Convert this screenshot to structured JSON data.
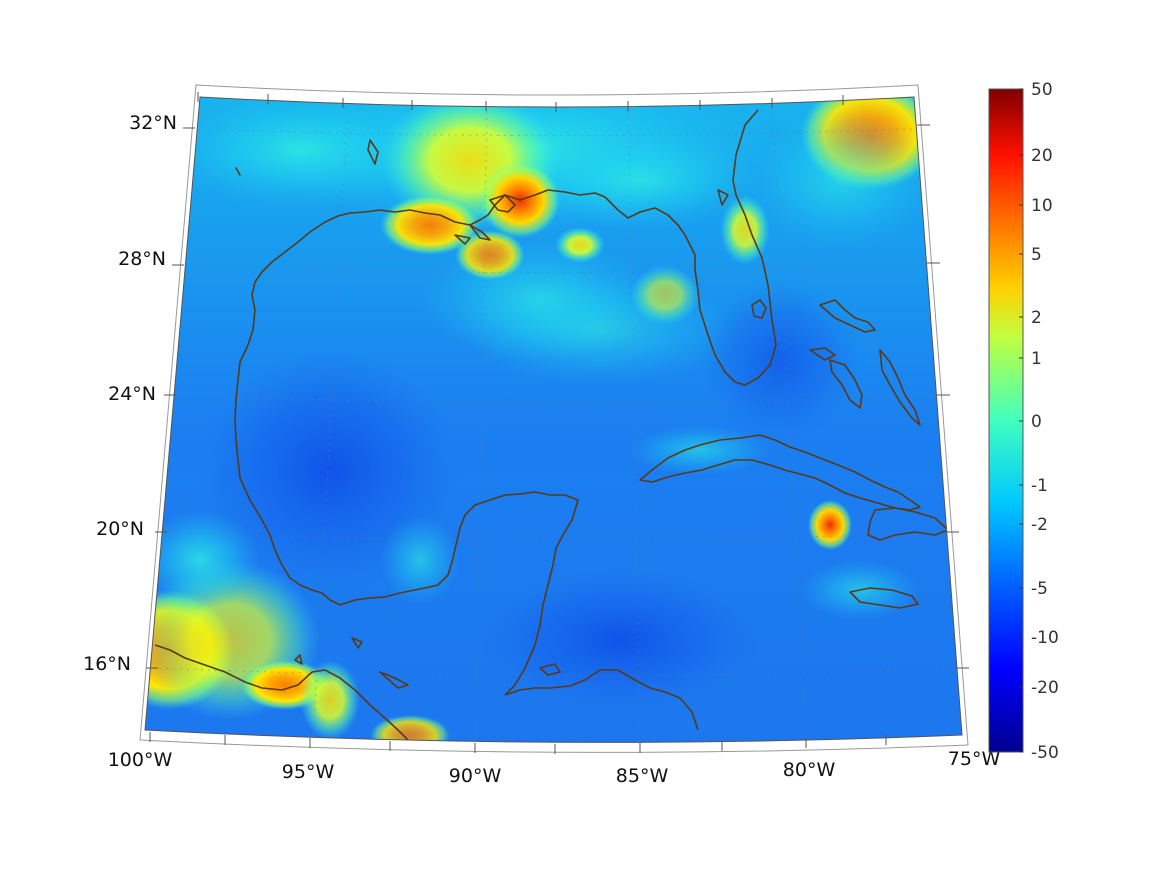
{
  "map": {
    "lat_labels": [
      "32°N",
      "28°N",
      "24°N",
      "20°N",
      "16°N"
    ],
    "lon_labels": [
      "100°W",
      "95°W",
      "90°W",
      "85°W",
      "80°W",
      "75°W"
    ],
    "extent": {
      "lon": [
        -100,
        -75
      ],
      "lat": [
        14,
        33
      ]
    }
  },
  "colorbar": {
    "tick_labels": [
      "50",
      "20",
      "10",
      "5",
      "2",
      "1",
      "0",
      "-1",
      "-2",
      "-5",
      "-10",
      "-20",
      "-50"
    ],
    "colormap": "jet",
    "colors": [
      "#00008f",
      "#0000ff",
      "#0080ff",
      "#00ffff",
      "#80ff80",
      "#ffff00",
      "#ff8000",
      "#ff0000",
      "#800000"
    ]
  }
}
